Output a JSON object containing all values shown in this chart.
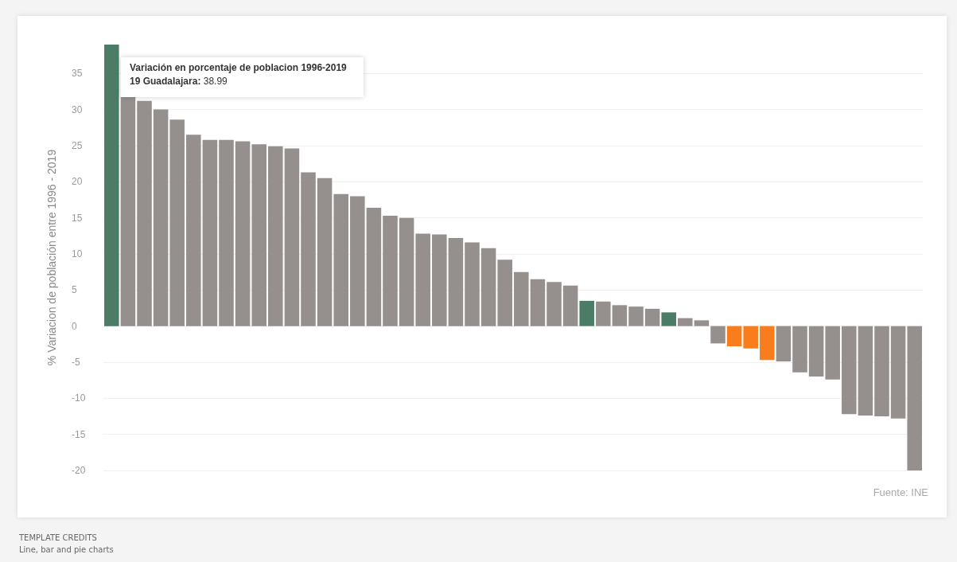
{
  "chart_data": {
    "type": "bar",
    "ylabel": "% Variacion de población entre 1996 - 2019",
    "categories": [
      null,
      null,
      null,
      null,
      null,
      null,
      null,
      null,
      null,
      null,
      null,
      null,
      null,
      null,
      null,
      null,
      null,
      null,
      null,
      null,
      null,
      null,
      null,
      null,
      null,
      null,
      null,
      null,
      null,
      null,
      null,
      null,
      null,
      null,
      null,
      null,
      null,
      null,
      null,
      null,
      null,
      null,
      null,
      null,
      null,
      null,
      null,
      null,
      null,
      null
    ],
    "values": [
      38.99,
      31.8,
      31.2,
      30.0,
      28.6,
      26.5,
      25.8,
      25.8,
      25.6,
      25.2,
      24.9,
      24.6,
      21.3,
      20.5,
      18.3,
      18.0,
      16.4,
      15.3,
      15.0,
      12.8,
      12.7,
      12.2,
      11.6,
      10.8,
      9.2,
      7.5,
      6.5,
      6.1,
      5.6,
      3.5,
      3.4,
      2.9,
      2.7,
      2.4,
      1.9,
      1.1,
      0.8,
      -2.4,
      -2.8,
      -3.1,
      -4.7,
      -4.9,
      -6.4,
      -7.0,
      -7.4,
      -12.2,
      -12.4,
      -12.5,
      -12.8,
      -20
    ],
    "colors": [
      "#4a7c66",
      "#958f8d",
      "#958f8d",
      "#958f8d",
      "#958f8d",
      "#958f8d",
      "#958f8d",
      "#958f8d",
      "#958f8d",
      "#958f8d",
      "#958f8d",
      "#958f8d",
      "#958f8d",
      "#958f8d",
      "#958f8d",
      "#958f8d",
      "#958f8d",
      "#958f8d",
      "#958f8d",
      "#958f8d",
      "#958f8d",
      "#958f8d",
      "#958f8d",
      "#958f8d",
      "#958f8d",
      "#958f8d",
      "#958f8d",
      "#958f8d",
      "#958f8d",
      "#4a7c66",
      "#958f8d",
      "#958f8d",
      "#958f8d",
      "#958f8d",
      "#4a7c66",
      "#958f8d",
      "#958f8d",
      "#958f8d",
      "#f97c1d",
      "#f97c1d",
      "#f97c1d",
      "#958f8d",
      "#958f8d",
      "#958f8d",
      "#958f8d",
      "#958f8d",
      "#958f8d",
      "#958f8d",
      "#958f8d",
      "#958f8d"
    ],
    "ylim": [
      -20,
      39
    ],
    "yticks": [
      -20,
      -15,
      -10,
      -5,
      0,
      5,
      10,
      15,
      20,
      25,
      30,
      35
    ],
    "grid": "y",
    "annotations": [
      "Variación en porcentaje de poblacion 1996-2019\n19 Guadalajara: 38.99",
      "Fuente: INE",
      "TEMPLATE CREDITS",
      "Line, bar and pie charts"
    ]
  }
}
